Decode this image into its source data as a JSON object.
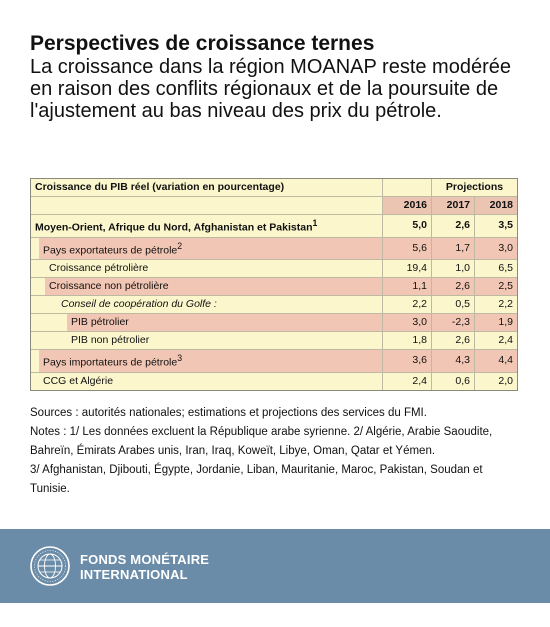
{
  "headline": {
    "title": "Perspectives de croissance ternes",
    "subtitle": "La croissance dans la région MOANAP reste modérée en raison des conflits régionaux et de la poursuite de l'ajustement au bas niveau des prix du pétrole."
  },
  "table": {
    "caption": "Croissance du PIB réel (variation en pourcentage)",
    "projections_label": "Projections",
    "years": [
      "2016",
      "2017",
      "2018"
    ],
    "rows": [
      {
        "label": "Moyen-Orient, Afrique du Nord, Afghanistan et Pakistan",
        "sup": "1",
        "values": [
          "5,0",
          "2,6",
          "3,5"
        ]
      },
      {
        "label": "Pays exportateurs de pétrole",
        "sup": "2",
        "values": [
          "5,6",
          "1,7",
          "3,0"
        ]
      },
      {
        "label": "Croissance pétrolière",
        "sup": "",
        "values": [
          "19,4",
          "1,0",
          "6,5"
        ]
      },
      {
        "label": "Croissance non pétrolière",
        "sup": "",
        "values": [
          "1,1",
          "2,6",
          "2,5"
        ]
      },
      {
        "label": "Conseil de coopération du Golfe :",
        "sup": "",
        "values": [
          "2,2",
          "0,5",
          "2,2"
        ]
      },
      {
        "label": "PIB pétrolier",
        "sup": "",
        "values": [
          "3,0",
          "-2,3",
          "1,9"
        ]
      },
      {
        "label": "PIB non pétrolier",
        "sup": "",
        "values": [
          "1,8",
          "2,6",
          "2,4"
        ]
      },
      {
        "label": "Pays importateurs de pétrole",
        "sup": "3",
        "values": [
          "3,6",
          "4,3",
          "4,4"
        ]
      },
      {
        "label": "CCG et Algérie",
        "sup": "",
        "values": [
          "2,4",
          "0,6",
          "2,0"
        ]
      }
    ]
  },
  "notes": {
    "sources": "Sources : autorités nationales; estimations et projections des services du FMI.",
    "note1": "Notes : 1/ Les données excluent la République arabe syrienne. 2/ Algérie, Arabie Saoudite, Bahreïn, Émirats Arabes unis, Iran, Iraq, Koweït, Libye, Oman, Qatar et Yémen.",
    "note3": "3/ Afghanistan, Djibouti, Égypte, Jordanie, Liban, Mauritanie, Maroc, Pakistan, Soudan et Tunisie."
  },
  "footer": {
    "org_line1": "FONDS MONÉTAIRE",
    "org_line2": "INTERNATIONAL",
    "seal_text": "INTERNATIONAL MONETARY FUND"
  },
  "colors": {
    "table_bg": "#fbf6cc",
    "highlight": "#f2c6b4",
    "footer_bg": "#6b8ca8"
  }
}
